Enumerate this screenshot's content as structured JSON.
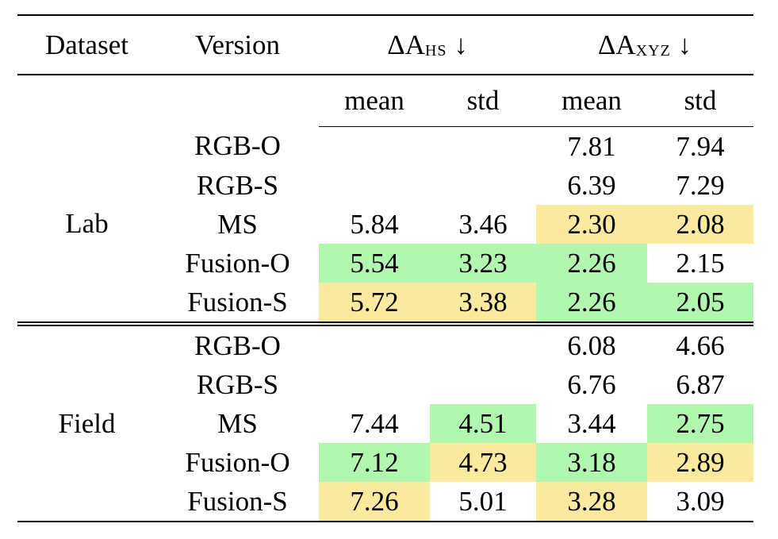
{
  "header": {
    "dataset": "Dataset",
    "version": "Version",
    "ahs_delta": "ΔA",
    "ahs_sub": "HS",
    "axyz_delta": "ΔA",
    "axyz_sub": "XYZ",
    "arrow": "↓"
  },
  "subheader": {
    "mean1": "mean",
    "std1": "std",
    "mean2": "mean",
    "std2": "std"
  },
  "colors": {
    "green": "#b2f7b0",
    "yellow": "#faeaa0"
  },
  "groups": [
    {
      "dataset": "Lab",
      "rows": [
        {
          "version": "RGB-O",
          "hs_mean": "",
          "hs_std": "",
          "xyz_mean": "7.81",
          "xyz_std": "7.94",
          "hl": [
            "",
            "",
            "",
            ""
          ]
        },
        {
          "version": "RGB-S",
          "hs_mean": "",
          "hs_std": "",
          "xyz_mean": "6.39",
          "xyz_std": "7.29",
          "hl": [
            "",
            "",
            "",
            ""
          ]
        },
        {
          "version": "MS",
          "hs_mean": "5.84",
          "hs_std": "3.46",
          "xyz_mean": "2.30",
          "xyz_std": "2.08",
          "hl": [
            "",
            "",
            "yellow",
            "yellow"
          ]
        },
        {
          "version": "Fusion-O",
          "hs_mean": "5.54",
          "hs_std": "3.23",
          "xyz_mean": "2.26",
          "xyz_std": "2.15",
          "hl": [
            "green",
            "green",
            "green",
            ""
          ]
        },
        {
          "version": "Fusion-S",
          "hs_mean": "5.72",
          "hs_std": "3.38",
          "xyz_mean": "2.26",
          "xyz_std": "2.05",
          "hl": [
            "yellow",
            "yellow",
            "green",
            "green"
          ]
        }
      ]
    },
    {
      "dataset": "Field",
      "rows": [
        {
          "version": "RGB-O",
          "hs_mean": "",
          "hs_std": "",
          "xyz_mean": "6.08",
          "xyz_std": "4.66",
          "hl": [
            "",
            "",
            "",
            ""
          ]
        },
        {
          "version": "RGB-S",
          "hs_mean": "",
          "hs_std": "",
          "xyz_mean": "6.76",
          "xyz_std": "6.87",
          "hl": [
            "",
            "",
            "",
            ""
          ]
        },
        {
          "version": "MS",
          "hs_mean": "7.44",
          "hs_std": "4.51",
          "xyz_mean": "3.44",
          "xyz_std": "2.75",
          "hl": [
            "",
            "green",
            "",
            "green"
          ]
        },
        {
          "version": "Fusion-O",
          "hs_mean": "7.12",
          "hs_std": "4.73",
          "xyz_mean": "3.18",
          "xyz_std": "2.89",
          "hl": [
            "green",
            "yellow",
            "green",
            "yellow"
          ]
        },
        {
          "version": "Fusion-S",
          "hs_mean": "7.26",
          "hs_std": "5.01",
          "xyz_mean": "3.28",
          "xyz_std": "3.09",
          "hl": [
            "yellow",
            "",
            "yellow",
            ""
          ]
        }
      ]
    }
  ]
}
